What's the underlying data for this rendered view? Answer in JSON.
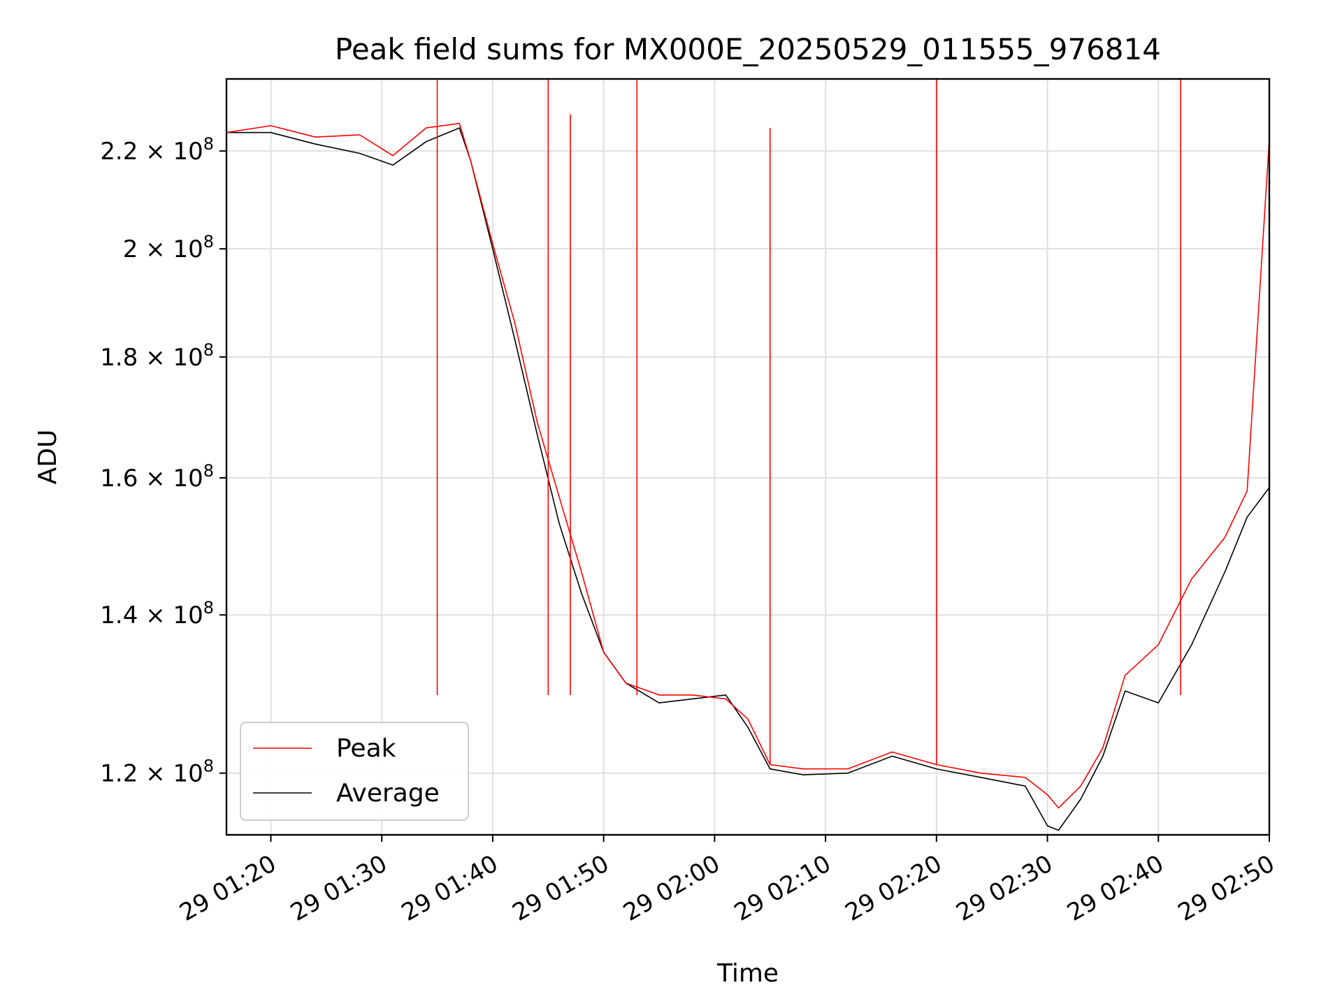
{
  "chart_data": {
    "type": "line",
    "title": "Peak field sums for MX000E_20250529_011555_976814",
    "xlabel": "Time",
    "ylabel": "ADU",
    "yscale": "log",
    "ylim": [
      113000000,
      236000000
    ],
    "xlim": [
      "29 01:16",
      "29 02:50"
    ],
    "grid": true,
    "legend_position": "lower-left",
    "xticks": [
      "29 01:20",
      "29 01:30",
      "29 01:40",
      "29 01:50",
      "29 02:00",
      "29 02:10",
      "29 02:20",
      "29 02:30",
      "29 02:40",
      "29 02:50"
    ],
    "yticks": [
      {
        "value": 120000000,
        "mantissa": "1.2"
      },
      {
        "value": 140000000,
        "mantissa": "1.4"
      },
      {
        "value": 160000000,
        "mantissa": "1.6"
      },
      {
        "value": 180000000,
        "mantissa": "1.8"
      },
      {
        "value": 200000000,
        "mantissa": "2"
      },
      {
        "value": 220000000,
        "mantissa": "2.2"
      }
    ],
    "ytick_format": {
      "times": "×",
      "base": "10",
      "exponent": "8"
    },
    "series": [
      {
        "name": "Peak",
        "color": "#ff0000",
        "x": [
          "29 01:16",
          "29 01:20",
          "29 01:24",
          "29 01:28",
          "29 01:31",
          "29 01:34",
          "29 01:37",
          "29 01:38",
          "29 01:40",
          "29 01:42",
          "29 01:44",
          "29 01:46",
          "29 01:48",
          "29 01:50",
          "29 01:52",
          "29 01:55",
          "29 01:58",
          "29 02:01",
          "29 02:03",
          "29 02:05",
          "29 02:08",
          "29 02:12",
          "29 02:16",
          "29 02:20",
          "29 02:24",
          "29 02:28",
          "29 02:30",
          "29 02:31",
          "29 02:33",
          "29 02:35",
          "29 02:37",
          "29 02:40",
          "29 02:43",
          "29 02:46",
          "29 02:48",
          "29 02:50"
        ],
        "values": [
          224000000,
          225500000,
          223000000,
          223500000,
          219000000,
          225000000,
          226000000,
          218000000,
          201000000,
          186000000,
          169000000,
          157000000,
          146000000,
          135000000,
          131000000,
          129500000,
          129500000,
          129000000,
          126500000,
          121000000,
          120500000,
          120500000,
          122500000,
          121000000,
          120000000,
          119500000,
          117500000,
          116000000,
          118500000,
          123000000,
          132000000,
          136000000,
          145000000,
          151000000,
          158000000,
          222500000
        ],
        "peaks_x": [
          "29 01:35",
          "29 01:45",
          "29 01:47",
          "29 01:53",
          "29 02:05",
          "29 02:20",
          "29 02:42"
        ],
        "peaks_values": [
          236000000,
          236000000,
          228000000,
          236000000,
          225000000,
          236000000,
          236000000
        ]
      },
      {
        "name": "Average",
        "color": "#000000",
        "x": [
          "29 01:16",
          "29 01:20",
          "29 01:24",
          "29 01:28",
          "29 01:31",
          "29 01:34",
          "29 01:37",
          "29 01:38",
          "29 01:40",
          "29 01:42",
          "29 01:44",
          "29 01:46",
          "29 01:48",
          "29 01:50",
          "29 01:52",
          "29 01:55",
          "29 01:58",
          "29 02:01",
          "29 02:03",
          "29 02:05",
          "29 02:08",
          "29 02:12",
          "29 02:16",
          "29 02:20",
          "29 02:24",
          "29 02:28",
          "29 02:30",
          "29 02:31",
          "29 02:33",
          "29 02:35",
          "29 02:37",
          "29 02:40",
          "29 02:43",
          "29 02:46",
          "29 02:48",
          "29 02:50"
        ],
        "values": [
          224000000,
          224000000,
          221500000,
          219500000,
          217000000,
          222000000,
          225000000,
          218000000,
          200000000,
          183000000,
          167000000,
          153000000,
          143000000,
          135000000,
          131000000,
          128500000,
          129000000,
          129500000,
          125500000,
          120500000,
          119800000,
          120000000,
          122000000,
          120500000,
          119500000,
          118500000,
          114000000,
          113500000,
          117000000,
          122000000,
          130000000,
          128500000,
          136000000,
          146000000,
          154000000,
          158500000
        ]
      }
    ]
  }
}
